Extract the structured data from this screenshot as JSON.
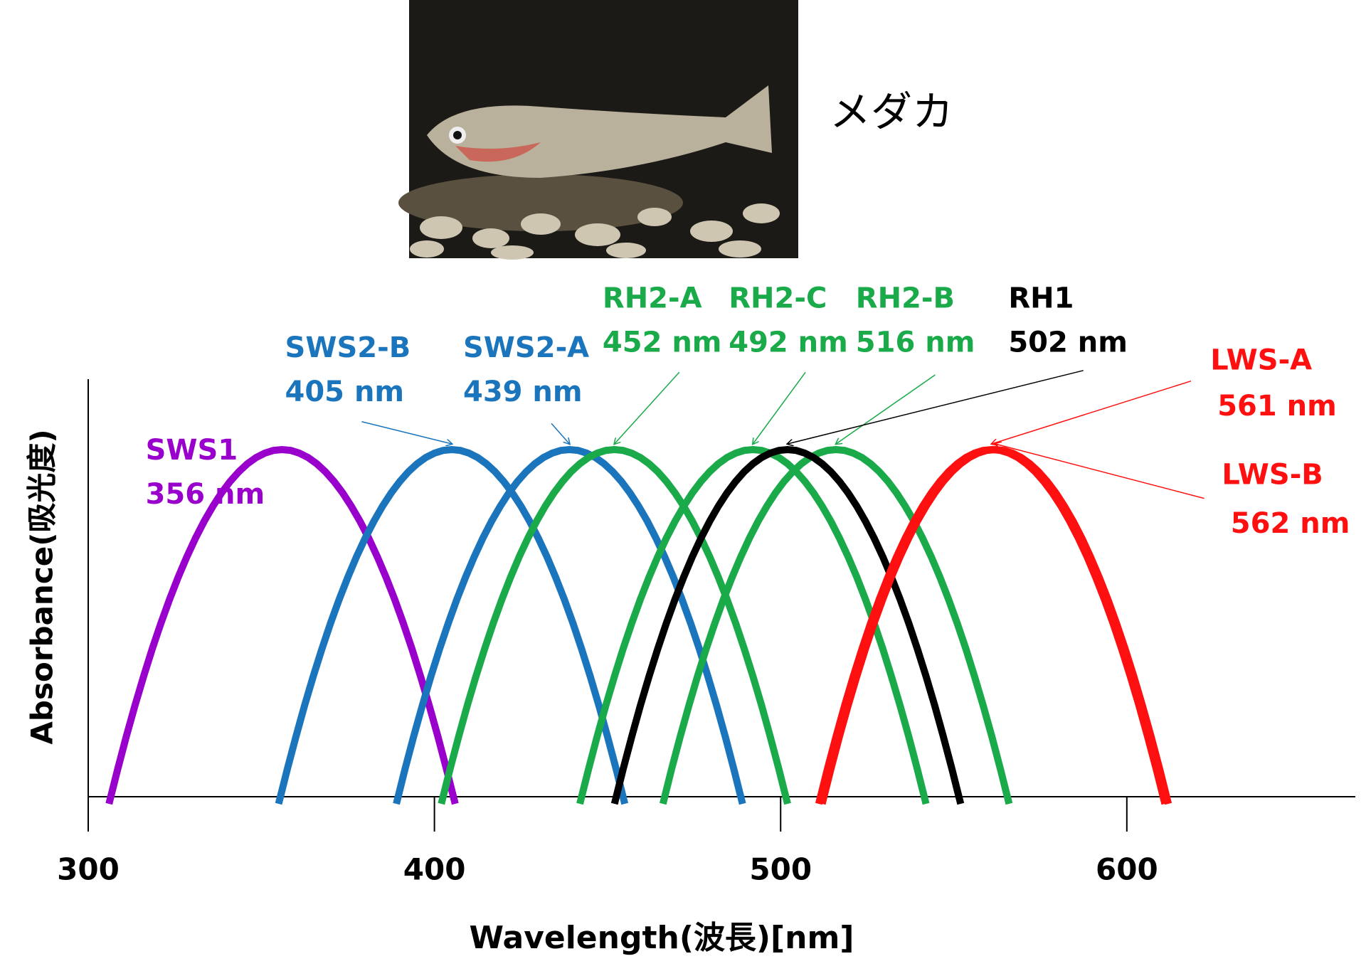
{
  "photo_caption": "メダカ",
  "chart_data": {
    "type": "spectra",
    "x_label": "Wavelength(波長)[nm]",
    "y_label": "Absorbance(吸光度)",
    "xlim": [
      300,
      666
    ],
    "xticks": [
      300,
      400,
      500,
      600
    ],
    "series": [
      {
        "name": "SWS1",
        "color": "#9900cc",
        "values": [
          356
        ],
        "value_labels": [
          "356 nm"
        ]
      },
      {
        "name": "SWS2-B",
        "color": "#1b75bc",
        "values": [
          405
        ],
        "value_labels": [
          "405 nm"
        ]
      },
      {
        "name": "SWS2-A",
        "color": "#1b75bc",
        "values": [
          439
        ],
        "value_labels": [
          "439 nm"
        ]
      },
      {
        "name": "RH2-A",
        "color": "#1aaa4a",
        "values": [
          452
        ],
        "value_labels": [
          "452 nm"
        ]
      },
      {
        "name": "RH2-C",
        "color": "#1aaa4a",
        "values": [
          492
        ],
        "value_labels": [
          "492 nm"
        ]
      },
      {
        "name": "RH2-B",
        "color": "#1aaa4a",
        "values": [
          516
        ],
        "value_labels": [
          "516 nm"
        ]
      },
      {
        "name": "RH1",
        "color": "#000000",
        "values": [
          502
        ],
        "value_labels": [
          "502 nm"
        ]
      },
      {
        "name": "LWS-A",
        "color": "#ff1010",
        "values": [
          561
        ],
        "value_labels": [
          "561 nm"
        ]
      },
      {
        "name": "LWS-B",
        "color": "#ff1010",
        "values": [
          562
        ],
        "value_labels": [
          "562 nm"
        ]
      }
    ]
  }
}
